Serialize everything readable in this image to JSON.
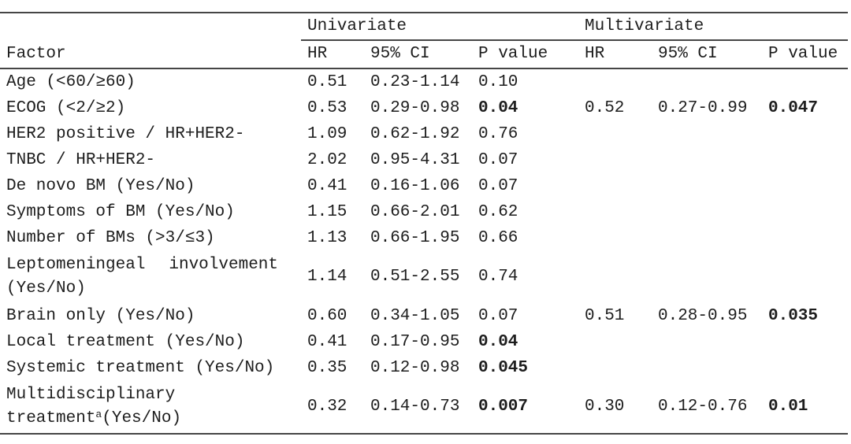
{
  "document": {
    "kind": "statistical analysis table",
    "text_color": "#1d1d1d",
    "rule_color": "#454545",
    "background": "#ffffff"
  },
  "table": {
    "groups": {
      "univariate": "Univariate",
      "multivariate": "Multivariate"
    },
    "columns": {
      "factor": "Factor",
      "u_hr": "HR",
      "u_ci": "95% CI",
      "u_p": "P value",
      "m_hr": "HR",
      "m_ci": "95% CI",
      "m_p": "P value"
    },
    "rows": [
      {
        "factor": "Age (<60/≥60)",
        "u_hr": "0.51",
        "u_ci": "0.23-1.14",
        "u_p": "0.10",
        "u_p_bold": false,
        "m_hr": "",
        "m_ci": "",
        "m_p": ""
      },
      {
        "factor": "ECOG (<2/≥2)",
        "u_hr": "0.53",
        "u_ci": "0.29-0.98",
        "u_p": "0.04",
        "u_p_bold": true,
        "m_hr": "0.52",
        "m_ci": "0.27-0.99",
        "m_p": "0.047",
        "m_p_bold": true
      },
      {
        "factor": "HER2 positive / HR+HER2-",
        "u_hr": "1.09",
        "u_ci": "0.62-1.92",
        "u_p": "0.76",
        "u_p_bold": false,
        "m_hr": "",
        "m_ci": "",
        "m_p": ""
      },
      {
        "factor": "TNBC / HR+HER2-",
        "u_hr": "2.02",
        "u_ci": "0.95-4.31",
        "u_p": "0.07",
        "u_p_bold": false,
        "m_hr": "",
        "m_ci": "",
        "m_p": ""
      },
      {
        "factor": "De novo BM (Yes/No)",
        "u_hr": "0.41",
        "u_ci": "0.16-1.06",
        "u_p": "0.07",
        "u_p_bold": false,
        "m_hr": "",
        "m_ci": "",
        "m_p": ""
      },
      {
        "factor": "Symptoms of BM (Yes/No)",
        "u_hr": "1.15",
        "u_ci": "0.66-2.01",
        "u_p": "0.62",
        "u_p_bold": false,
        "m_hr": "",
        "m_ci": "",
        "m_p": ""
      },
      {
        "factor": "Number of BMs (>3/≤3)",
        "u_hr": "1.13",
        "u_ci": "0.66-1.95",
        "u_p": "0.66",
        "u_p_bold": false,
        "m_hr": "",
        "m_ci": "",
        "m_p": ""
      },
      {
        "factor_line1_left": "Leptomeningeal",
        "factor_line1_right": "involvement",
        "factor_line2": "(Yes/No)",
        "u_hr": "1.14",
        "u_ci": "0.51-2.55",
        "u_p": "0.74",
        "u_p_bold": false,
        "m_hr": "",
        "m_ci": "",
        "m_p": ""
      },
      {
        "factor": "Brain only (Yes/No)",
        "u_hr": "0.60",
        "u_ci": "0.34-1.05",
        "u_p": "0.07",
        "u_p_bold": false,
        "m_hr": "0.51",
        "m_ci": "0.28-0.95",
        "m_p": "0.035",
        "m_p_bold": true
      },
      {
        "factor": "Local treatment (Yes/No)",
        "u_hr": "0.41",
        "u_ci": "0.17-0.95",
        "u_p": "0.04",
        "u_p_bold": true,
        "m_hr": "",
        "m_ci": "",
        "m_p": ""
      },
      {
        "factor": "Systemic treatment (Yes/No)",
        "u_hr": "0.35",
        "u_ci": "0.12-0.98",
        "u_p": "0.045",
        "u_p_bold": true,
        "m_hr": "",
        "m_ci": "",
        "m_p": ""
      },
      {
        "factor_line1": "Multidisciplinary",
        "factor_line2_word": "treatment",
        "factor_superscript": "a",
        "factor_line2_rest": "(Yes/No)",
        "u_hr": "0.32",
        "u_ci": "0.14-0.73",
        "u_p": "0.007",
        "u_p_bold": true,
        "m_hr": "0.30",
        "m_ci": "0.12-0.76",
        "m_p": "0.01",
        "m_p_bold": true
      }
    ]
  }
}
